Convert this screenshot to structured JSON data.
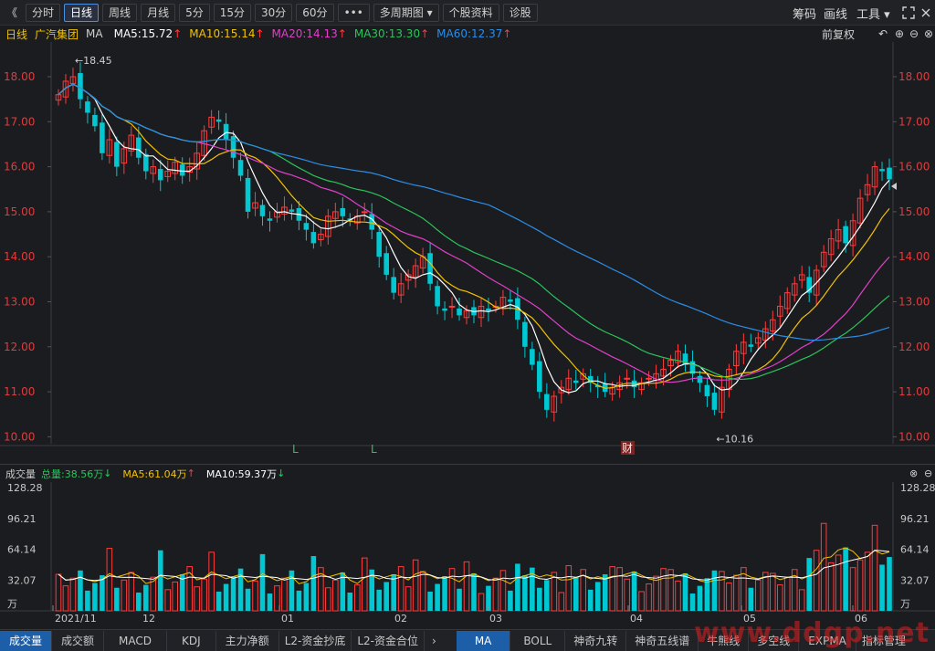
{
  "toolbar": {
    "collapse": "《",
    "buttons": [
      "分时",
      "日线",
      "周线",
      "月线",
      "5分",
      "15分",
      "30分",
      "60分",
      "•••",
      "多周期图 ▾",
      "个股资料",
      "诊股"
    ],
    "active_index": 1,
    "right": [
      "筹码",
      "画线",
      "工具 ▾"
    ]
  },
  "info": {
    "period": "日线",
    "stock": "广汽集团",
    "indicator": "MA",
    "ma5": "MA5:15.72",
    "ma10": "MA10:15.14",
    "ma20": "MA20:14.13",
    "ma30": "MA30:13.30",
    "ma60": "MA60:12.37",
    "up": "↑",
    "adj": "前复权"
  },
  "colors": {
    "up": "#ff3b3b",
    "down": "#00c8d2",
    "ma5": "#ffffff",
    "ma10": "#f2c200",
    "ma20": "#e040c8",
    "ma30": "#2bc45a",
    "ma60": "#2a8ee8"
  },
  "price_axis": [
    "18.00",
    "17.00",
    "16.00",
    "15.00",
    "14.00",
    "13.00",
    "12.00",
    "11.00",
    "10.00"
  ],
  "annotations": {
    "high": "←18.45",
    "low": "←10.16",
    "marker_l": "L",
    "marker_cai": "财"
  },
  "volume": {
    "label": "成交量",
    "total": "总量:38.56万",
    "ma5": "MA5:61.04万",
    "ma10": "MA10:59.37万",
    "up": "↑",
    "down": "↓",
    "axis": [
      "128.28",
      "96.21",
      "64.14",
      "32.07",
      "万"
    ]
  },
  "x_axis": [
    "2021/11",
    "12",
    "01",
    "02",
    "03",
    "04",
    "05",
    "06"
  ],
  "bottom_tabs_left": [
    "成交量",
    "成交额",
    "MACD",
    "KDJ",
    "主力净额",
    "L2-资金抄底",
    "L2-资金合位"
  ],
  "bottom_tabs_right": [
    "MA",
    "BOLL",
    "神奇九转",
    "神奇五线谱",
    "牛熊线",
    "多空线",
    "EXPMA",
    "指标管理"
  ],
  "watermark": "www.ddgp.net",
  "chart_data": {
    "type": "candlestick",
    "ylim": [
      10.0,
      18.5
    ],
    "closes": [
      17.6,
      17.9,
      18.0,
      17.5,
      17.2,
      16.9,
      16.3,
      16.6,
      16.0,
      16.4,
      16.7,
      16.2,
      15.9,
      16.0,
      15.7,
      15.9,
      16.1,
      15.8,
      16.0,
      16.3,
      16.8,
      17.1,
      17.0,
      16.6,
      16.2,
      15.8,
      15.0,
      15.2,
      14.9,
      14.8,
      15.0,
      15.1,
      15.0,
      14.8,
      14.6,
      14.3,
      14.5,
      14.9,
      15.0,
      14.9,
      14.8,
      14.9,
      15.0,
      14.6,
      14.0,
      13.6,
      13.2,
      13.4,
      13.6,
      13.8,
      14.0,
      13.4,
      12.9,
      12.8,
      12.9,
      12.7,
      12.8,
      12.7,
      12.9,
      12.8,
      12.9,
      13.1,
      13.0,
      12.6,
      12.0,
      11.6,
      11.0,
      10.6,
      10.9,
      11.1,
      11.3,
      11.2,
      11.4,
      11.2,
      11.1,
      11.0,
      11.1,
      11.2,
      11.3,
      11.1,
      11.2,
      11.3,
      11.4,
      11.5,
      11.7,
      11.9,
      11.6,
      11.4,
      11.2,
      10.9,
      10.6,
      11.1,
      11.5,
      11.9,
      12.1,
      12.0,
      12.2,
      12.4,
      12.6,
      12.9,
      13.2,
      13.4,
      13.6,
      13.2,
      13.7,
      14.1,
      14.4,
      14.6,
      14.3,
      14.8,
      15.3,
      15.6,
      16.0,
      15.9,
      15.72
    ]
  }
}
